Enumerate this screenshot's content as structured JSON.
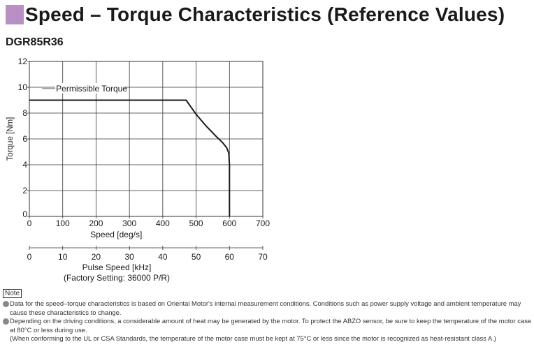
{
  "header": {
    "title": "Speed – Torque Characteristics (Reference Values)"
  },
  "model": "DGR85R36",
  "chart_data": {
    "type": "line",
    "xlabel": "Speed [deg/s]",
    "ylabel": "Torque [Nm]",
    "xlim": [
      0,
      700
    ],
    "ylim": [
      0,
      12
    ],
    "x_ticks": [
      "0",
      "100",
      "200",
      "300",
      "400",
      "500",
      "600",
      "700"
    ],
    "y_ticks": [
      "0",
      "2",
      "4",
      "6",
      "8",
      "10",
      "12"
    ],
    "grid": true,
    "secondary_axis": {
      "label": "Pulse Speed [kHz]",
      "sublabel": "(Factory Setting: 36000 P/R)",
      "ticks": [
        "0",
        "10",
        "20",
        "30",
        "40",
        "50",
        "60",
        "70"
      ]
    },
    "series": [
      {
        "name": "Permissible Torque",
        "x": [
          0,
          470,
          500,
          530,
          560,
          580,
          592,
          598,
          600,
          600
        ],
        "y": [
          9,
          9,
          7.9,
          7.0,
          6.2,
          5.7,
          5.3,
          4.9,
          4.0,
          0
        ]
      }
    ]
  },
  "notes": {
    "label": "Note",
    "items": [
      "Data for the speed–torque characteristics is based on Oriental Motor's internal measurement conditions. Conditions such as power supply voltage and ambient temperature may cause these characteristics to change.",
      "Depending on the driving conditions, a considerable amount of heat may be generated by the motor. To protect the ABZO sensor, be sure to keep the temperature of the motor case at 80°C or less during use."
    ],
    "extra": "(When conforming to the UL or CSA Standards, the temperature of the motor case must be kept at 75°C or less since the motor is recognized as heat-resistant class A.)"
  },
  "colors": {
    "marker": "#b98fc4",
    "line": "#1a1a1a",
    "grid": "#333333"
  }
}
